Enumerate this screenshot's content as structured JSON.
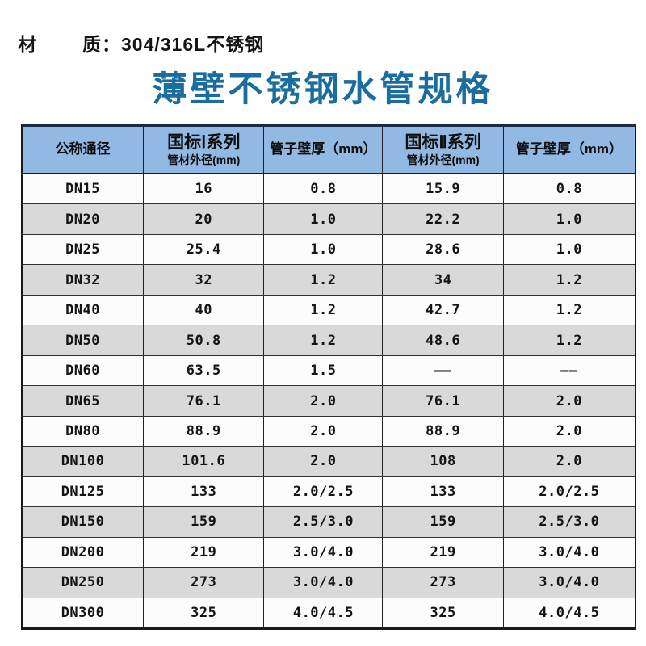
{
  "page": {
    "background": "#ffffff"
  },
  "top": {
    "material_label_1": "材",
    "material_label_2": "质：",
    "material_value": "304/316L不锈钢",
    "title": "薄壁不锈钢水管规格"
  },
  "colors": {
    "title": "#1a6d9e",
    "header_bg": "#92b9e3",
    "row_even_bg": "#d9d9d9",
    "row_odd_bg": "#fcfcfc",
    "table_top_line": "#1c2947"
  },
  "table": {
    "columns": [
      {
        "label": "公称通径",
        "sub": ""
      },
      {
        "label": "国标Ⅰ系列",
        "sub": "管材外径(mm)"
      },
      {
        "label": "管子壁厚（mm）",
        "sub": ""
      },
      {
        "label": "国标Ⅱ系列",
        "sub": "管材外径(mm)"
      },
      {
        "label": "管子壁厚（mm）",
        "sub": ""
      }
    ],
    "rows": [
      [
        "DN15",
        "16",
        "0.8",
        "15.9",
        "0.8"
      ],
      [
        "DN20",
        "20",
        "1.0",
        "22.2",
        "1.0"
      ],
      [
        "DN25",
        "25.4",
        "1.0",
        "28.6",
        "1.0"
      ],
      [
        "DN32",
        "32",
        "1.2",
        "34",
        "1.2"
      ],
      [
        "DN40",
        "40",
        "1.2",
        "42.7",
        "1.2"
      ],
      [
        "DN50",
        "50.8",
        "1.2",
        "48.6",
        "1.2"
      ],
      [
        "DN60",
        "63.5",
        "1.5",
        "——",
        "——"
      ],
      [
        "DN65",
        "76.1",
        "2.0",
        "76.1",
        "2.0"
      ],
      [
        "DN80",
        "88.9",
        "2.0",
        "88.9",
        "2.0"
      ],
      [
        "DN100",
        "101.6",
        "2.0",
        "108",
        "2.0"
      ],
      [
        "DN125",
        "133",
        "2.0/2.5",
        "133",
        "2.0/2.5"
      ],
      [
        "DN150",
        "159",
        "2.5/3.0",
        "159",
        "2.5/3.0"
      ],
      [
        "DN200",
        "219",
        "3.0/4.0",
        "219",
        "3.0/4.0"
      ],
      [
        "DN250",
        "273",
        "3.0/4.0",
        "273",
        "3.0/4.0"
      ],
      [
        "DN300",
        "325",
        "4.0/4.5",
        "325",
        "4.0/4.5"
      ]
    ]
  }
}
